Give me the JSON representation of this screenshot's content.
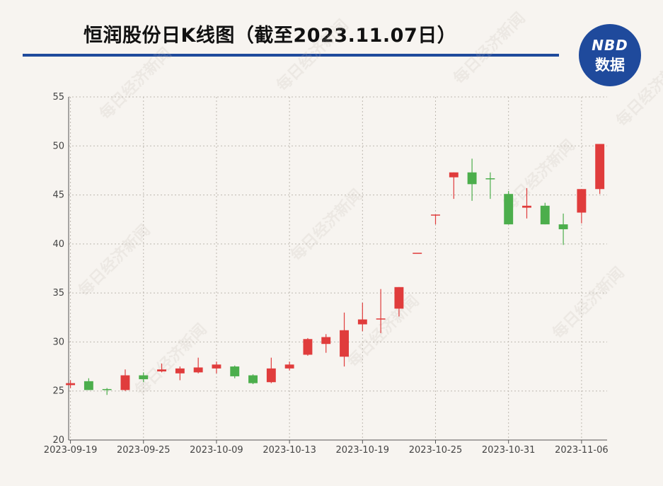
{
  "header": {
    "title": "恒润股份日K线图（截至2023.11.07日）",
    "logo_top": "NBD",
    "logo_bottom": "数据"
  },
  "watermark": "每日经济新闻",
  "colors": {
    "up": "#e03c3c",
    "down": "#4cae4c",
    "brand": "#1f4a9c"
  },
  "chart_data": {
    "type": "candlestick",
    "ylim": [
      20,
      55
    ],
    "yticks": [
      20,
      25,
      30,
      35,
      40,
      45,
      50,
      55
    ],
    "xtick_labels": [
      "2023-09-19",
      "2023-09-25",
      "2023-10-09",
      "2023-10-13",
      "2023-10-19",
      "2023-10-25",
      "2023-10-31",
      "2023-11-06"
    ],
    "xtick_index": [
      0,
      4,
      8,
      12,
      16,
      20,
      24,
      28
    ],
    "grid": true,
    "candles": [
      {
        "date": "2023-09-19",
        "open": 25.6,
        "close": 25.8,
        "high": 26.1,
        "low": 25.3
      },
      {
        "date": "2023-09-20",
        "open": 26.0,
        "close": 25.1,
        "high": 26.3,
        "low": 25.1
      },
      {
        "date": "2023-09-21",
        "open": 25.2,
        "close": 25.1,
        "high": 25.3,
        "low": 24.6
      },
      {
        "date": "2023-09-22",
        "open": 25.1,
        "close": 26.6,
        "high": 27.2,
        "low": 25.0
      },
      {
        "date": "2023-09-25",
        "open": 26.6,
        "close": 26.2,
        "high": 26.9,
        "low": 25.9
      },
      {
        "date": "2023-09-26",
        "open": 27.0,
        "close": 27.2,
        "high": 27.8,
        "low": 26.9
      },
      {
        "date": "2023-09-27",
        "open": 26.8,
        "close": 27.3,
        "high": 27.5,
        "low": 26.1
      },
      {
        "date": "2023-09-28",
        "open": 26.9,
        "close": 27.4,
        "high": 28.4,
        "low": 26.8
      },
      {
        "date": "2023-10-09",
        "open": 27.3,
        "close": 27.7,
        "high": 28.0,
        "low": 26.8
      },
      {
        "date": "2023-10-10",
        "open": 27.5,
        "close": 26.5,
        "high": 27.6,
        "low": 26.3
      },
      {
        "date": "2023-10-11",
        "open": 26.6,
        "close": 25.8,
        "high": 26.7,
        "low": 25.7
      },
      {
        "date": "2023-10-12",
        "open": 25.9,
        "close": 27.3,
        "high": 28.4,
        "low": 25.8
      },
      {
        "date": "2023-10-13",
        "open": 27.3,
        "close": 27.7,
        "high": 28.0,
        "low": 27.1
      },
      {
        "date": "2023-10-16",
        "open": 28.7,
        "close": 30.3,
        "high": 30.4,
        "low": 28.6
      },
      {
        "date": "2023-10-17",
        "open": 29.8,
        "close": 30.5,
        "high": 30.8,
        "low": 28.9
      },
      {
        "date": "2023-10-18",
        "open": 28.5,
        "close": 31.2,
        "high": 33.0,
        "low": 27.5
      },
      {
        "date": "2023-10-19",
        "open": 31.8,
        "close": 32.3,
        "high": 34.0,
        "low": 31.1
      },
      {
        "date": "2023-10-20",
        "open": 32.3,
        "close": 32.4,
        "high": 35.4,
        "low": 30.9
      },
      {
        "date": "2023-10-23",
        "open": 33.4,
        "close": 35.6,
        "high": 35.6,
        "low": 32.6
      },
      {
        "date": "2023-10-24",
        "open": 39.1,
        "close": 39.1,
        "high": 39.1,
        "low": 39.1
      },
      {
        "date": "2023-10-25",
        "open": 43.0,
        "close": 43.0,
        "high": 43.0,
        "low": 42.0
      },
      {
        "date": "2023-10-26",
        "open": 46.8,
        "close": 47.3,
        "high": 47.3,
        "low": 44.6
      },
      {
        "date": "2023-10-27",
        "open": 47.3,
        "close": 46.1,
        "high": 48.7,
        "low": 44.4
      },
      {
        "date": "2023-10-30",
        "open": 46.7,
        "close": 46.6,
        "high": 47.3,
        "low": 44.6
      },
      {
        "date": "2023-10-31",
        "open": 45.1,
        "close": 42.0,
        "high": 45.4,
        "low": 42.0
      },
      {
        "date": "2023-11-01",
        "open": 43.7,
        "close": 43.9,
        "high": 45.7,
        "low": 42.6
      },
      {
        "date": "2023-11-02",
        "open": 43.9,
        "close": 42.0,
        "high": 44.2,
        "low": 42.0
      },
      {
        "date": "2023-11-03",
        "open": 42.0,
        "close": 41.5,
        "high": 43.1,
        "low": 39.9
      },
      {
        "date": "2023-11-06",
        "open": 43.2,
        "close": 45.6,
        "high": 45.6,
        "low": 42.1
      },
      {
        "date": "2023-11-07",
        "open": 45.6,
        "close": 50.2,
        "high": 50.2,
        "low": 45.1
      }
    ]
  }
}
